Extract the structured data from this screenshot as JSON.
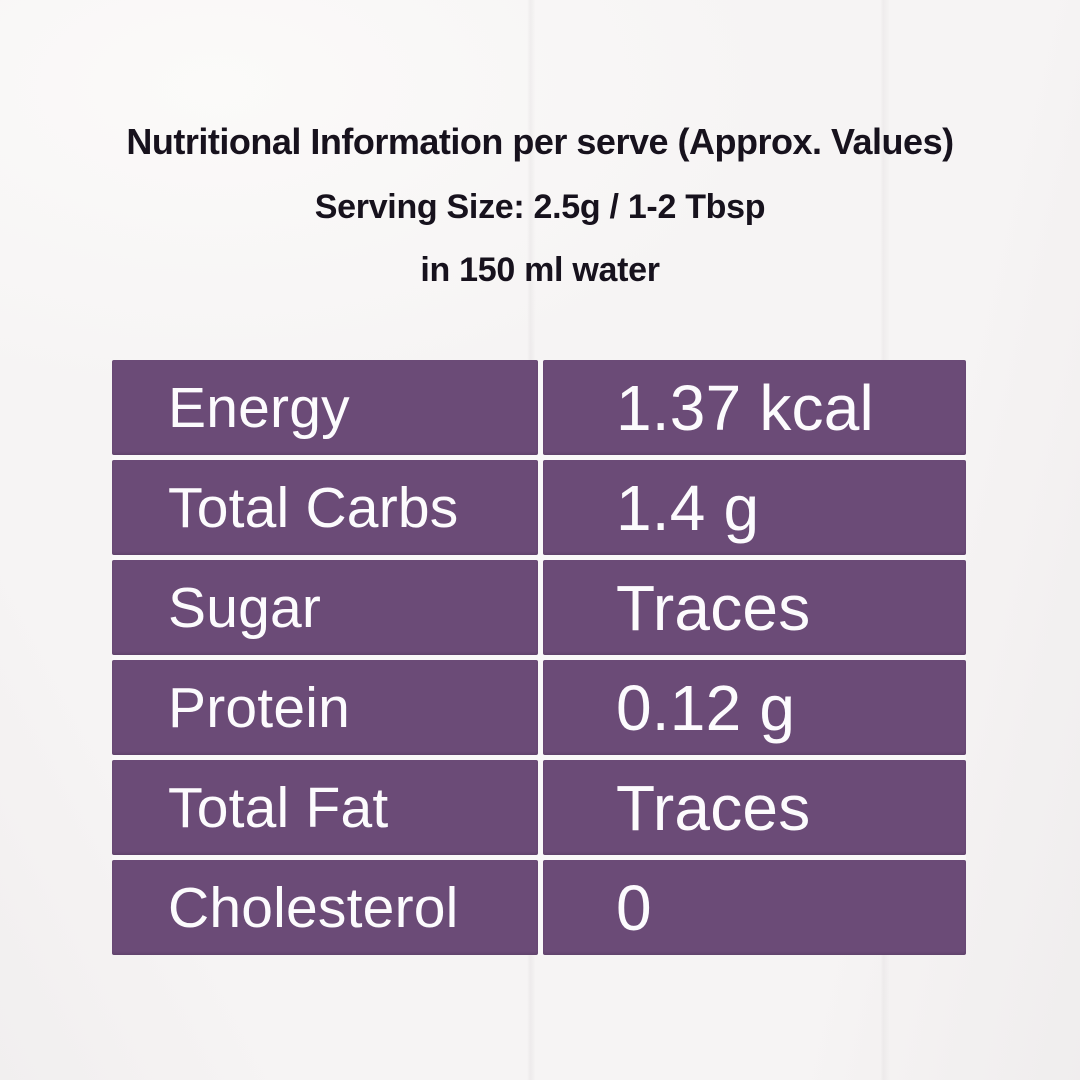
{
  "page": {
    "background_color": "#f6f4f4",
    "table_cell_color": "#6b4b77",
    "table_gutter_color": "#f9f8f9",
    "header_text_color": "#17121d",
    "cell_text_color": "#fcfbfd"
  },
  "header": {
    "title": "Nutritional Information per serve (Approx. Values)",
    "serving_size": "Serving Size: 2.5g / 1-2 Tbsp",
    "dilution": "in 150 ml water"
  },
  "chart_data": {
    "type": "table",
    "title": "Nutritional Information per serve (Approx. Values)",
    "subtitle": "Serving Size: 2.5g / 1-2 Tbsp in 150 ml water",
    "legend_position": "none",
    "grid": "white gutters between solid purple cells, 2 columns x 6 rows",
    "rows": [
      {
        "label": "Energy",
        "value": "1.37 kcal"
      },
      {
        "label": "Total Carbs",
        "value": "1.4 g"
      },
      {
        "label": "Sugar",
        "value": "Traces"
      },
      {
        "label": "Protein",
        "value": "0.12 g"
      },
      {
        "label": "Total Fat",
        "value": "Traces"
      },
      {
        "label": "Cholesterol",
        "value": "0"
      }
    ]
  }
}
